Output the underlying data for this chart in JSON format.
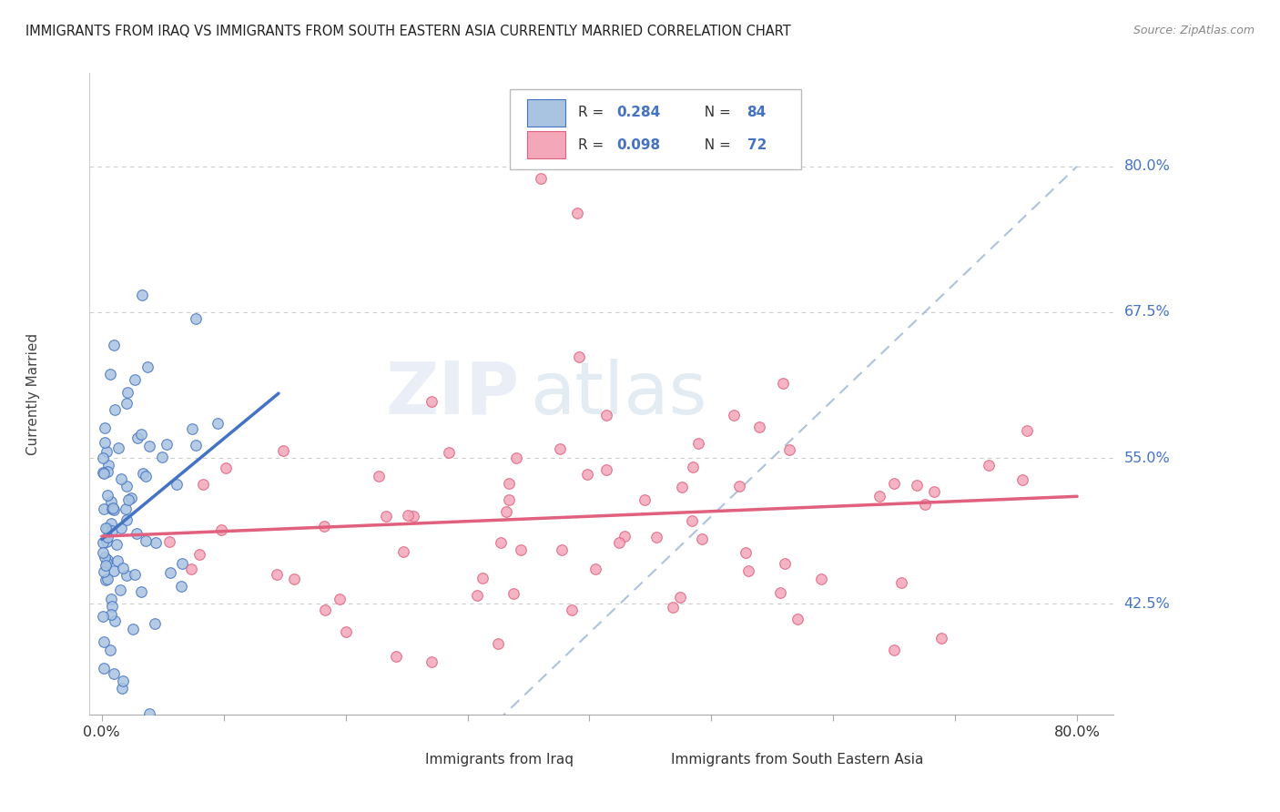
{
  "title": "IMMIGRANTS FROM IRAQ VS IMMIGRANTS FROM SOUTH EASTERN ASIA CURRENTLY MARRIED CORRELATION CHART",
  "source": "Source: ZipAtlas.com",
  "ylabel": "Currently Married",
  "ytick_labels": [
    "80.0%",
    "67.5%",
    "55.0%",
    "42.5%"
  ],
  "ytick_values": [
    0.8,
    0.675,
    0.55,
    0.425
  ],
  "xlim": [
    -0.01,
    0.83
  ],
  "ylim": [
    0.33,
    0.88
  ],
  "legend_r1_val": "0.284",
  "legend_n1_val": "84",
  "legend_r2_val": "0.098",
  "legend_n2_val": "72",
  "color_iraq": "#a8c4e0",
  "color_sea": "#f4a7b9",
  "color_iraq_line": "#4472c4",
  "color_sea_line": "#e0607e",
  "color_diag_line": "#a0b8d8",
  "watermark_zip": "ZIP",
  "watermark_atlas": "atlas",
  "iraq_seed": 42,
  "sea_seed": 123
}
